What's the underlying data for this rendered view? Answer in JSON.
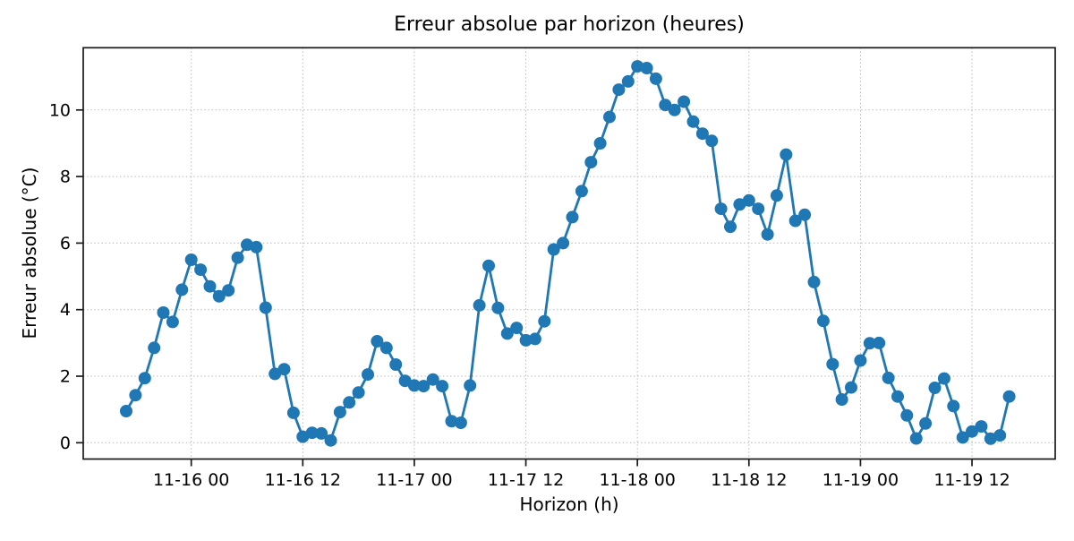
{
  "figure": {
    "background": "#ffffff"
  },
  "chart_data": {
    "type": "line",
    "title": "Erreur absolue par horizon (heures)",
    "xlabel": "Horizon (h)",
    "ylabel": "Erreur absolue (°C)",
    "grid": "dotted",
    "legend": "none",
    "ylim": [
      -0.49,
      11.87
    ],
    "y_ticks": [
      0,
      2,
      4,
      6,
      8,
      10
    ],
    "x_tick_labels": [
      "11-16 00",
      "11-16 12",
      "11-17 00",
      "11-17 12",
      "11-18 00",
      "11-18 12",
      "11-19 00",
      "11-19 12"
    ],
    "x_tick_first_index": 7,
    "x_tick_step": 12,
    "series": [
      {
        "name": "erreur absolue",
        "color": "#1f77b4",
        "marker": "circle",
        "x_start": "11-15 17:00",
        "x_step_hours": 1,
        "values": [
          0.95,
          1.43,
          1.94,
          2.85,
          3.91,
          3.63,
          4.6,
          5.5,
          5.2,
          4.7,
          4.4,
          4.58,
          5.56,
          5.95,
          5.88,
          4.06,
          2.07,
          2.21,
          0.9,
          0.18,
          0.3,
          0.28,
          0.07,
          0.92,
          1.21,
          1.51,
          2.05,
          3.05,
          2.85,
          2.35,
          1.86,
          1.72,
          1.7,
          1.9,
          1.7,
          0.65,
          0.6,
          1.72,
          4.13,
          5.32,
          4.05,
          3.28,
          3.45,
          3.08,
          3.12,
          3.65,
          5.81,
          6.0,
          6.78,
          7.56,
          8.43,
          9.0,
          9.79,
          10.61,
          10.86,
          11.31,
          11.26,
          10.94,
          10.15,
          10.0,
          10.25,
          9.65,
          9.29,
          9.07,
          7.03,
          6.49,
          7.16,
          7.28,
          7.03,
          6.26,
          7.43,
          8.66,
          6.67,
          6.85,
          4.83,
          3.66,
          2.36,
          1.3,
          1.66,
          2.47,
          2.99,
          3.0,
          1.95,
          1.39,
          0.82,
          0.13,
          0.58,
          1.65,
          1.93,
          1.1,
          0.16,
          0.34,
          0.49,
          0.12,
          0.22,
          1.39
        ]
      }
    ]
  }
}
